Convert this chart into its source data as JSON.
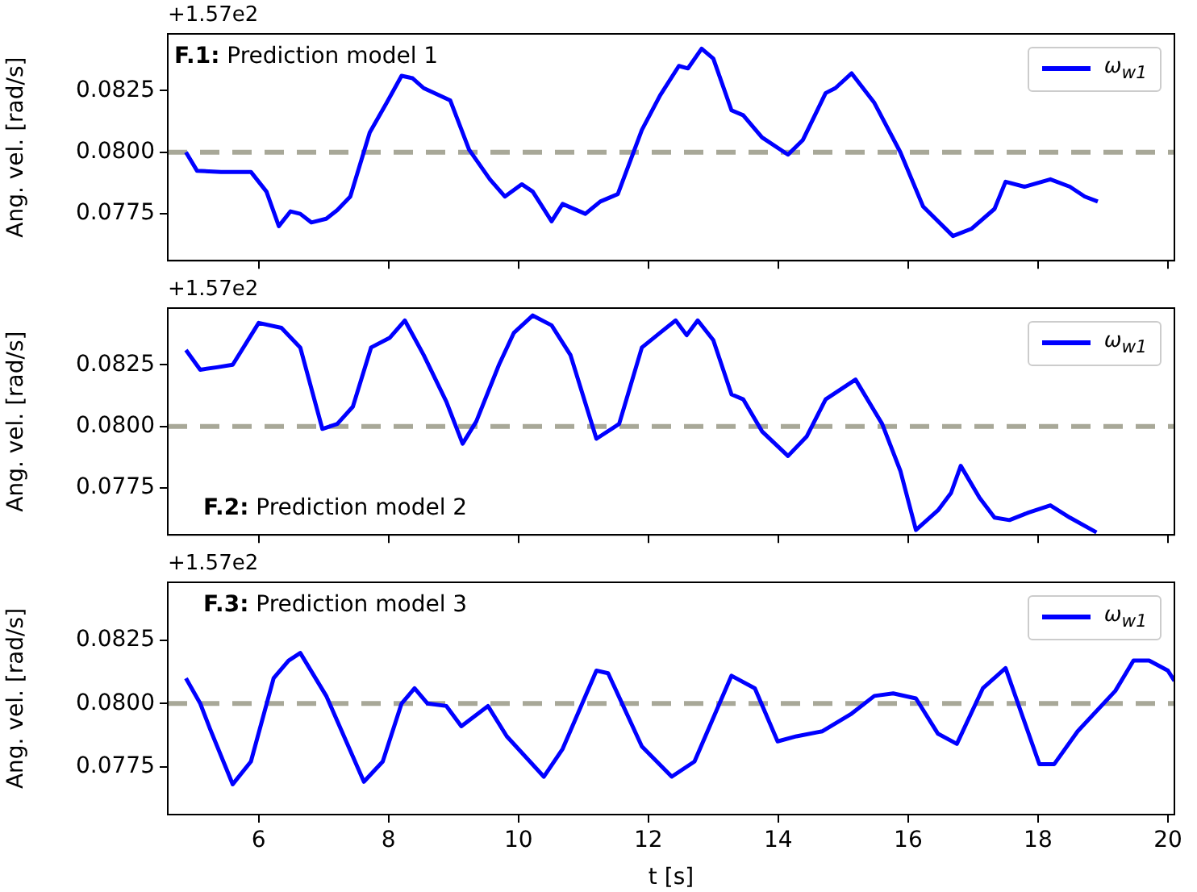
{
  "chart_data": [
    {
      "type": "line",
      "ylabel": "Ang. vel. [rad/s]",
      "annotations": [
        "+1.57e2",
        "F.1: Prediction model 1"
      ],
      "legend": "top right",
      "grid": false,
      "tick_labels": "y",
      "line_style": "solid",
      "marker": "none",
      "xlim": [
        4.6,
        20.1
      ],
      "xticks": [
        {
          "value": 6,
          "label": null
        },
        {
          "value": 8,
          "label": null
        },
        {
          "value": 10,
          "label": null
        },
        {
          "value": 12,
          "label": null
        },
        {
          "value": 14,
          "label": null
        },
        {
          "value": 16,
          "label": null
        },
        {
          "value": 18,
          "label": null
        },
        {
          "value": 20,
          "label": null
        }
      ],
      "ylim": [
        0.0756,
        0.0848
      ],
      "yticks": [
        {
          "value": 0.0775,
          "label": "0.0775"
        },
        {
          "value": 0.08,
          "label": "0.0800"
        },
        {
          "value": 0.0825,
          "label": "0.0825"
        }
      ],
      "ref_lines": [
        {
          "axis": "y",
          "value": 0.08,
          "color": "#a8a898",
          "line_style": "dashed"
        }
      ],
      "series": [
        {
          "name": "ω$_{w1}$",
          "color": "#0000ff",
          "x": [
            4.88,
            5.05,
            5.42,
            5.88,
            6.12,
            6.31,
            6.49,
            6.64,
            6.81,
            7.04,
            7.21,
            7.41,
            7.71,
            7.97,
            8.2,
            8.37,
            8.54,
            8.95,
            9.24,
            9.56,
            9.79,
            10.05,
            10.22,
            10.51,
            10.68,
            11.03,
            11.26,
            11.53,
            11.9,
            12.18,
            12.47,
            12.61,
            12.82,
            13.0,
            13.28,
            13.46,
            13.75,
            14.15,
            14.38,
            14.73,
            14.88,
            15.13,
            15.48,
            15.88,
            16.23,
            16.69,
            16.98,
            17.33,
            17.5,
            17.79,
            18.19,
            18.49,
            18.72,
            18.92
          ],
          "values": [
            0.08,
            0.07925,
            0.0792,
            0.0792,
            0.0784,
            0.077,
            0.0776,
            0.0775,
            0.07715,
            0.0773,
            0.07765,
            0.0782,
            0.0808,
            0.082,
            0.0831,
            0.083,
            0.0826,
            0.0821,
            0.0801,
            0.0789,
            0.0782,
            0.0787,
            0.0784,
            0.0772,
            0.0779,
            0.0775,
            0.078,
            0.0783,
            0.0809,
            0.0823,
            0.0835,
            0.0834,
            0.0842,
            0.0838,
            0.0817,
            0.0815,
            0.0806,
            0.0799,
            0.0805,
            0.0824,
            0.0826,
            0.0832,
            0.082,
            0.08,
            0.0778,
            0.0766,
            0.0769,
            0.0777,
            0.0788,
            0.0786,
            0.0789,
            0.0786,
            0.0782,
            0.078
          ]
        }
      ]
    },
    {
      "type": "line",
      "ylabel": "Ang. vel. [rad/s]",
      "annotations": [
        "+1.57e2",
        "F.2: Prediction model 2"
      ],
      "legend": "top right",
      "grid": false,
      "tick_labels": "y",
      "line_style": "solid",
      "marker": "none",
      "xlim": [
        4.6,
        20.1
      ],
      "xticks": [
        {
          "value": 6,
          "label": null
        },
        {
          "value": 8,
          "label": null
        },
        {
          "value": 10,
          "label": null
        },
        {
          "value": 12,
          "label": null
        },
        {
          "value": 14,
          "label": null
        },
        {
          "value": 16,
          "label": null
        },
        {
          "value": 18,
          "label": null
        },
        {
          "value": 20,
          "label": null
        }
      ],
      "ylim": [
        0.0756,
        0.0848
      ],
      "yticks": [
        {
          "value": 0.0775,
          "label": "0.0775"
        },
        {
          "value": 0.08,
          "label": "0.0800"
        },
        {
          "value": 0.0825,
          "label": "0.0825"
        }
      ],
      "ref_lines": [
        {
          "axis": "y",
          "value": 0.08,
          "color": "#a8a898",
          "line_style": "dashed"
        }
      ],
      "series": [
        {
          "name": "ω$_{w1}$",
          "color": "#0000ff",
          "x": [
            4.88,
            5.1,
            5.36,
            5.6,
            6.0,
            6.35,
            6.64,
            6.98,
            7.21,
            7.45,
            7.73,
            8.02,
            8.25,
            8.54,
            8.89,
            9.14,
            9.35,
            9.7,
            9.93,
            10.22,
            10.51,
            10.8,
            11.2,
            11.55,
            11.9,
            12.18,
            12.42,
            12.59,
            12.76,
            13.0,
            13.28,
            13.46,
            13.75,
            14.15,
            14.44,
            14.73,
            15.19,
            15.6,
            15.88,
            16.12,
            16.46,
            16.66,
            16.81,
            17.1,
            17.33,
            17.56,
            17.85,
            18.19,
            18.49,
            18.9
          ],
          "values": [
            0.0831,
            0.0823,
            0.0824,
            0.0825,
            0.0842,
            0.084,
            0.0832,
            0.0799,
            0.0801,
            0.0808,
            0.0832,
            0.0836,
            0.0843,
            0.0829,
            0.081,
            0.0793,
            0.0802,
            0.0825,
            0.0838,
            0.0845,
            0.0841,
            0.0829,
            0.0795,
            0.0801,
            0.0832,
            0.0838,
            0.0843,
            0.0837,
            0.0843,
            0.0835,
            0.0813,
            0.0811,
            0.0798,
            0.0788,
            0.0796,
            0.0811,
            0.0819,
            0.0801,
            0.0782,
            0.0758,
            0.0766,
            0.0773,
            0.0784,
            0.0771,
            0.0763,
            0.0762,
            0.0765,
            0.0768,
            0.0763,
            0.0757
          ]
        }
      ]
    },
    {
      "type": "line",
      "xlabel": "t [s]",
      "ylabel": "Ang. vel. [rad/s]",
      "annotations": [
        "+1.57e2",
        "F.3: Prediction model 3"
      ],
      "legend": "top right",
      "grid": false,
      "line_style": "solid",
      "marker": "none",
      "xlim": [
        4.6,
        20.1
      ],
      "xticks": [
        6,
        8,
        10,
        12,
        14,
        16,
        18,
        20
      ],
      "ylim": [
        0.0756,
        0.0848
      ],
      "yticks": [
        {
          "value": 0.0775,
          "label": "0.0775"
        },
        {
          "value": 0.08,
          "label": "0.0800"
        },
        {
          "value": 0.0825,
          "label": "0.0825"
        }
      ],
      "ref_lines": [
        {
          "axis": "y",
          "value": 0.08,
          "color": "#a8a898",
          "line_style": "dashed"
        }
      ],
      "series": [
        {
          "name": "ω$_{w1}$",
          "color": "#0000ff",
          "x": [
            4.88,
            5.1,
            5.25,
            5.6,
            5.88,
            6.23,
            6.46,
            6.64,
            7.04,
            7.62,
            7.91,
            8.2,
            8.4,
            8.6,
            8.89,
            9.12,
            9.53,
            9.82,
            10.39,
            10.68,
            11.2,
            11.38,
            11.9,
            12.36,
            12.71,
            13.28,
            13.64,
            13.99,
            14.28,
            14.68,
            15.13,
            15.48,
            15.77,
            16.12,
            16.46,
            16.75,
            17.15,
            17.5,
            18.02,
            18.25,
            18.61,
            19.19,
            19.47,
            19.71,
            20.0,
            20.1
          ],
          "values": [
            0.081,
            0.08,
            0.079,
            0.0768,
            0.0777,
            0.081,
            0.0817,
            0.082,
            0.0803,
            0.0769,
            0.0777,
            0.08,
            0.0806,
            0.08,
            0.0799,
            0.0791,
            0.0799,
            0.0787,
            0.0771,
            0.0782,
            0.0813,
            0.0812,
            0.0783,
            0.0771,
            0.0777,
            0.0811,
            0.0806,
            0.0785,
            0.0787,
            0.0789,
            0.0796,
            0.0803,
            0.0804,
            0.0802,
            0.0788,
            0.0784,
            0.0806,
            0.0814,
            0.0776,
            0.0776,
            0.0789,
            0.0805,
            0.0817,
            0.0817,
            0.0813,
            0.0809
          ]
        }
      ]
    }
  ]
}
